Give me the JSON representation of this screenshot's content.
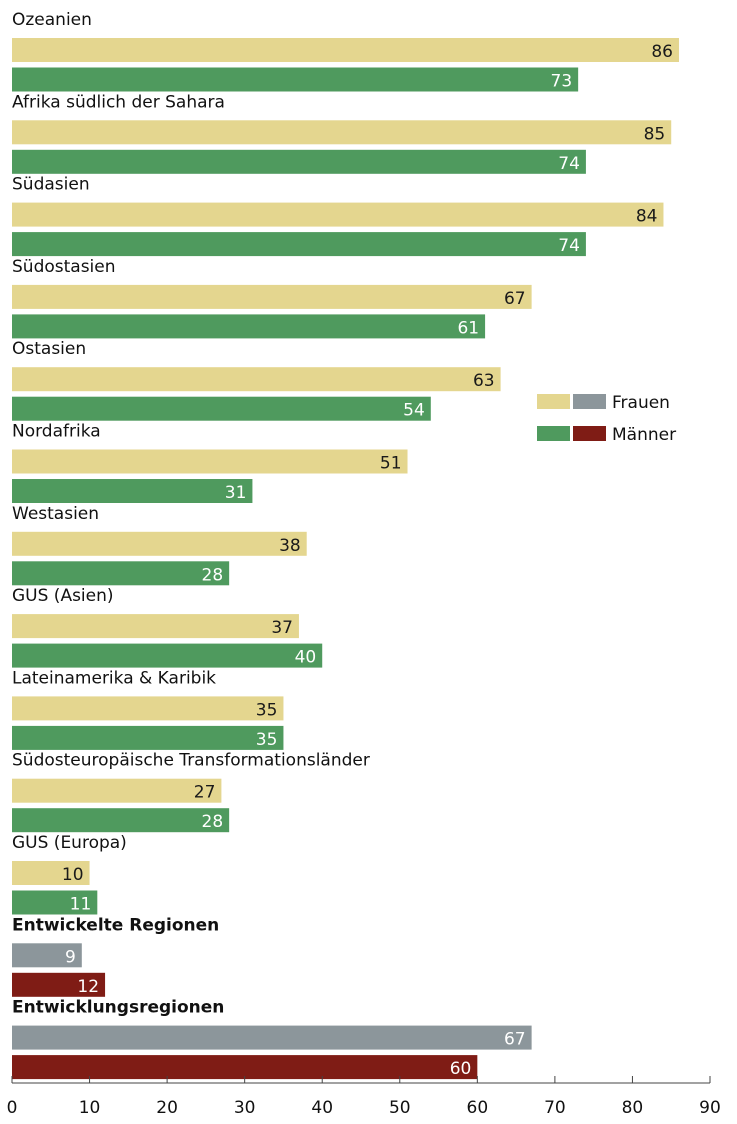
{
  "chart_data": {
    "type": "bar",
    "orientation": "horizontal",
    "categories": [
      "Ozeanien",
      "Afrika südlich der Sahara",
      "Südasien",
      "Südostasien",
      "Ostasien",
      "Nordafrika",
      "Westasien",
      "GUS (Asien)",
      "Lateinamerika & Karibik",
      "Südosteuropäische Transformationsländer",
      "GUS (Europa)",
      "Entwickelte Regionen",
      "Entwicklungsregionen"
    ],
    "bold_categories": [
      "Entwickelte Regionen",
      "Entwicklungsregionen"
    ],
    "series": [
      {
        "name": "Frauen",
        "values": [
          86,
          85,
          84,
          67,
          63,
          51,
          38,
          37,
          35,
          27,
          10,
          9,
          67
        ]
      },
      {
        "name": "Männer",
        "values": [
          73,
          74,
          74,
          61,
          54,
          31,
          28,
          40,
          35,
          28,
          11,
          12,
          60
        ]
      }
    ],
    "xlim": [
      0,
      90
    ],
    "xticks": [
      0,
      10,
      20,
      30,
      40,
      50,
      60,
      70,
      80,
      90
    ],
    "legend_position": "right",
    "colors": {
      "frauen_region": "#e4d68f",
      "maenner_region": "#4f9a5e",
      "frauen_aggregate": "#8c969b",
      "maenner_aggregate": "#7f1c15"
    },
    "title": "",
    "xlabel": "",
    "ylabel": ""
  }
}
